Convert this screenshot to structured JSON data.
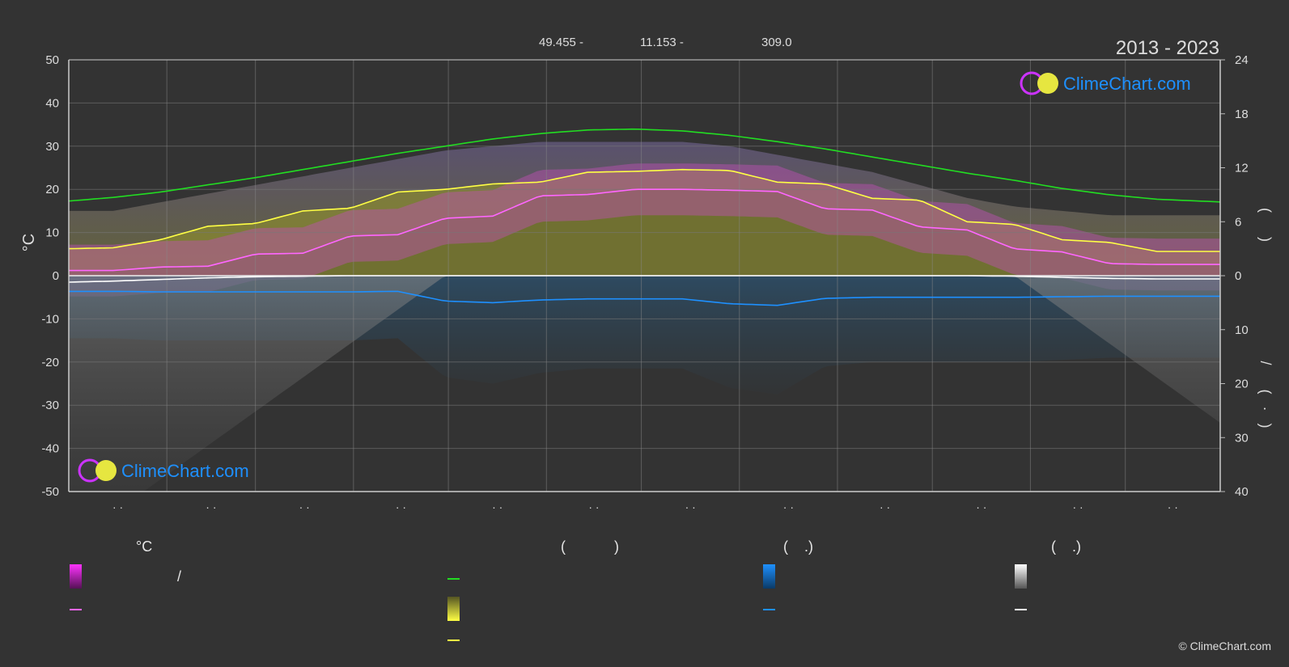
{
  "header": {
    "lat": "49.455 -",
    "lon": "11.153 -",
    "alt": "309.0",
    "years": "2013 - 2023"
  },
  "brand": {
    "name": "ClimeChart.com",
    "copyright": "© ClimeChart.com"
  },
  "colors": {
    "background": "#333333",
    "grid": "#777777",
    "daylight": "#22dd22",
    "sunshine": "#ffff44",
    "mean_temp": "#ff66ff",
    "rain": "#2288dd",
    "snow": "#ffffff",
    "brand": "#1e90ff"
  },
  "legend": {
    "col1_head": "°C",
    "col1_slash": "/",
    "col2_head": "(            )",
    "col3_head": "(    .)",
    "col4_head": "(    .)"
  },
  "chart_data": {
    "type": "area",
    "title": "",
    "xlabel": "",
    "ylabel": "°C",
    "month_ticks": [
      "· ·",
      "· ·",
      "· ·",
      "· ·",
      "· ·",
      "· ·",
      "· ·",
      "· ·",
      "· ·",
      "· ·",
      "· ·",
      "· ·"
    ],
    "ylim": [
      -50,
      50
    ],
    "yticks": [
      50,
      40,
      30,
      20,
      10,
      0,
      -10,
      -20,
      -30,
      -40,
      -50
    ],
    "y2_upper_label": "(      )",
    "y2_upper_ticks": [
      24,
      18,
      12,
      6,
      0
    ],
    "y2_upper_range": [
      0,
      24
    ],
    "y2_lower_label": "/      (   ·   )",
    "y2_lower_ticks": [
      10,
      20,
      30,
      40
    ],
    "y2_lower_range": [
      0,
      40
    ],
    "grid": true,
    "x": [
      1,
      15,
      30,
      45,
      60,
      75,
      90,
      105,
      120,
      135,
      150,
      165,
      180,
      195,
      210,
      225,
      240,
      255,
      270,
      285,
      300,
      315,
      330,
      345,
      365
    ],
    "series": [
      {
        "key": "daylight_hours",
        "axis": "hours",
        "values": [
          8.3,
          8.7,
          9.3,
          10.1,
          10.9,
          11.8,
          12.7,
          13.6,
          14.4,
          15.2,
          15.8,
          16.2,
          16.3,
          16.1,
          15.6,
          14.9,
          14.1,
          13.2,
          12.3,
          11.4,
          10.6,
          9.7,
          9.0,
          8.5,
          8.2
        ]
      },
      {
        "key": "sunshine_hours",
        "axis": "hours",
        "values": [
          3.0,
          3.1,
          4.0,
          5.5,
          5.8,
          7.2,
          7.5,
          9.3,
          9.6,
          10.2,
          10.4,
          11.5,
          11.6,
          11.8,
          11.7,
          10.4,
          10.2,
          8.6,
          8.4,
          6.0,
          5.7,
          4.0,
          3.7,
          2.7,
          2.7
        ]
      },
      {
        "key": "mean_temp",
        "axis": "celsius",
        "values": [
          1.2,
          1.2,
          2.0,
          2.2,
          5.0,
          5.2,
          9.2,
          9.5,
          13.3,
          13.8,
          18.5,
          18.8,
          20.0,
          20.0,
          19.8,
          19.5,
          15.5,
          15.2,
          11.3,
          10.6,
          6.2,
          5.5,
          2.8,
          2.6,
          2.6
        ]
      },
      {
        "key": "rain_mm",
        "axis": "mm",
        "values": [
          2.9,
          2.9,
          3.0,
          3.0,
          3.0,
          3.0,
          3.0,
          2.9,
          4.7,
          5.0,
          4.5,
          4.3,
          4.3,
          4.3,
          5.2,
          5.5,
          4.2,
          4.0,
          4.0,
          4.0,
          4.0,
          3.9,
          3.8,
          3.8,
          3.8
        ]
      },
      {
        "key": "snow_mm",
        "axis": "mm",
        "values": [
          1.2,
          1.0,
          0.7,
          0.4,
          0.2,
          0.1,
          0.0,
          0.0,
          0.0,
          0.0,
          0.0,
          0.0,
          0.0,
          0.0,
          0.0,
          0.0,
          0.0,
          0.0,
          0.0,
          0.0,
          0.1,
          0.3,
          0.5,
          0.6,
          0.6
        ]
      }
    ],
    "band_max_temp_upper": [
      15,
      15,
      17,
      19,
      21,
      23,
      25,
      27,
      29,
      30,
      31,
      31,
      31,
      31,
      30,
      28,
      26,
      24,
      21,
      18,
      16,
      15,
      14,
      14,
      14
    ]
  }
}
